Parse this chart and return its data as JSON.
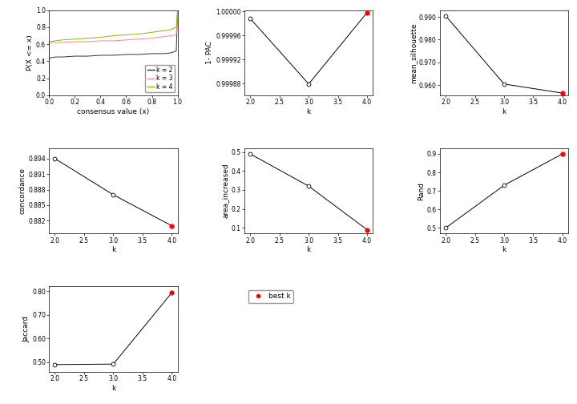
{
  "ecdf": {
    "k2": {
      "x": [
        0.0,
        0.001,
        0.01,
        0.05,
        0.1,
        0.2,
        0.3,
        0.4,
        0.5,
        0.6,
        0.7,
        0.8,
        0.9,
        0.95,
        0.99,
        1.0
      ],
      "y": [
        0.0,
        0.44,
        0.44,
        0.45,
        0.45,
        0.46,
        0.46,
        0.47,
        0.47,
        0.48,
        0.48,
        0.49,
        0.49,
        0.5,
        0.52,
        1.0
      ],
      "color": "#333333"
    },
    "k3": {
      "x": [
        0.0,
        0.001,
        0.01,
        0.05,
        0.1,
        0.2,
        0.3,
        0.4,
        0.5,
        0.6,
        0.7,
        0.8,
        0.9,
        0.95,
        0.99,
        1.0
      ],
      "y": [
        0.0,
        0.62,
        0.62,
        0.62,
        0.62,
        0.63,
        0.63,
        0.64,
        0.64,
        0.65,
        0.66,
        0.67,
        0.69,
        0.7,
        0.71,
        1.0
      ],
      "color": "#ff8888"
    },
    "k4": {
      "x": [
        0.0,
        0.001,
        0.01,
        0.05,
        0.1,
        0.2,
        0.3,
        0.4,
        0.5,
        0.6,
        0.7,
        0.8,
        0.9,
        0.95,
        0.96,
        0.99,
        1.0
      ],
      "y": [
        0.0,
        0.62,
        0.63,
        0.64,
        0.65,
        0.66,
        0.67,
        0.68,
        0.7,
        0.71,
        0.72,
        0.74,
        0.76,
        0.77,
        0.78,
        0.8,
        1.0
      ],
      "color": "#88bb00"
    }
  },
  "ecdf_xlabel": "consensus value (x)",
  "ecdf_ylabel": "P(X <= x)",
  "ecdf_xlim": [
    0.0,
    1.0
  ],
  "ecdf_ylim": [
    0.0,
    1.0
  ],
  "legend_labels": [
    "k = 2",
    "k = 3",
    "k = 4"
  ],
  "legend_colors": [
    "#333333",
    "#ff8888",
    "#88bb00"
  ],
  "pac": {
    "k": [
      2,
      3,
      4
    ],
    "y": [
      0.999988,
      0.999879,
      0.999998
    ],
    "best_k": 4,
    "ylabel": "1- PAC",
    "yticks": [
      0.99988,
      0.99992,
      0.99996,
      1.0
    ],
    "ytick_labels": [
      "0.99988",
      "0.99992",
      "0.99996",
      "1.00000"
    ],
    "open_points": [
      2,
      3
    ],
    "filled_points": [
      4
    ]
  },
  "silhouette": {
    "k": [
      2,
      3,
      4
    ],
    "y": [
      0.9905,
      0.9605,
      0.9565
    ],
    "best_k": 4,
    "ylabel": "mean_silhouette",
    "yticks": [
      0.96,
      0.97,
      0.98,
      0.99
    ],
    "ytick_labels": [
      "0.960",
      "0.970",
      "0.980",
      "0.990"
    ],
    "open_points": [
      2,
      3
    ],
    "filled_points": [
      4
    ]
  },
  "concordance": {
    "k": [
      2,
      3,
      4
    ],
    "y": [
      0.894,
      0.887,
      0.881
    ],
    "best_k": 4,
    "ylabel": "concordance",
    "yticks": [
      0.882,
      0.885,
      0.888,
      0.891,
      0.894
    ],
    "ytick_labels": [
      "0.882",
      "0.885",
      "0.888",
      "0.891",
      "0.894"
    ],
    "open_points": [
      2,
      3
    ],
    "filled_points": [
      4
    ]
  },
  "area_increased": {
    "k": [
      2,
      3,
      4
    ],
    "y": [
      0.49,
      0.32,
      0.09
    ],
    "best_k": 4,
    "ylabel": "area_increased",
    "yticks": [
      0.1,
      0.2,
      0.3,
      0.4,
      0.5
    ],
    "ytick_labels": [
      "0.1",
      "0.2",
      "0.3",
      "0.4",
      "0.5"
    ],
    "open_points": [
      2,
      3
    ],
    "filled_points": [
      4
    ]
  },
  "rand": {
    "k": [
      2,
      3,
      4
    ],
    "y": [
      0.5,
      0.73,
      0.9
    ],
    "best_k": 4,
    "ylabel": "Rand",
    "yticks": [
      0.5,
      0.6,
      0.7,
      0.8,
      0.9
    ],
    "ytick_labels": [
      "0.5",
      "0.6",
      "0.7",
      "0.8",
      "0.9"
    ],
    "open_points": [
      2,
      3
    ],
    "filled_points": [
      4
    ]
  },
  "jaccard": {
    "k": [
      2,
      3,
      4
    ],
    "y": [
      0.49,
      0.492,
      0.793
    ],
    "best_k": 4,
    "ylabel": "Jaccard",
    "yticks": [
      0.5,
      0.6,
      0.7,
      0.8
    ],
    "ytick_labels": [
      "0.50",
      "0.60",
      "0.70",
      "0.80"
    ],
    "open_points": [
      2,
      3
    ],
    "filled_points": [
      4
    ]
  },
  "xlabel_k": "k",
  "best_k_legend_label": "best k",
  "xticks": [
    2.0,
    2.5,
    3.0,
    3.5,
    4.0
  ],
  "xtick_labels": [
    "2.0",
    "2.5",
    "3.0",
    "3.5",
    "4.0"
  ]
}
